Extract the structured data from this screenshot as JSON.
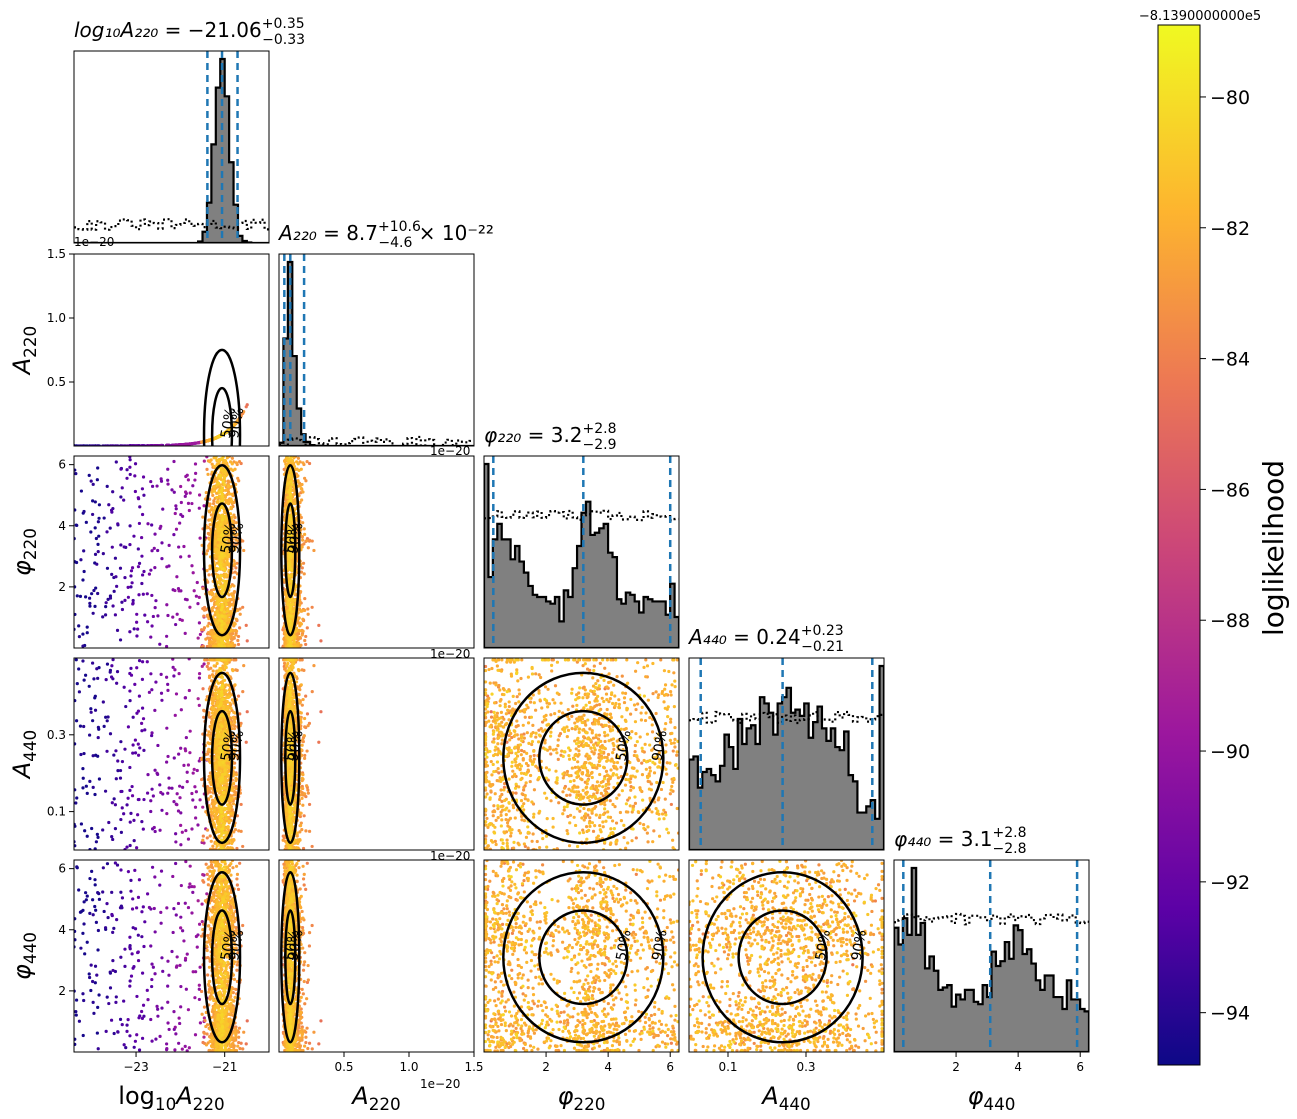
{
  "chart_data": {
    "type": "corner",
    "parameters": [
      {
        "key": "logA220",
        "base": "log",
        "sub": "10",
        "sym": "A",
        "symsub": "220",
        "range": [
          -24.4,
          -20.0
        ],
        "ticks": [
          -23,
          -21
        ],
        "tick_labels": [
          "−23",
          "−21"
        ],
        "offset": ""
      },
      {
        "key": "A220",
        "base": "",
        "sub": "",
        "sym": "A",
        "symsub": "220",
        "range": [
          0.0,
          1.5
        ],
        "ticks": [
          0.5,
          1.0,
          1.5
        ],
        "tick_labels": [
          "0.5",
          "1.0",
          "1.5"
        ],
        "offset": "1e−20"
      },
      {
        "key": "phi220",
        "base": "",
        "sub": "",
        "sym": "φ",
        "symsub": "220",
        "range": [
          0.0,
          6.283
        ],
        "ticks": [
          2,
          4,
          6
        ],
        "tick_labels": [
          "2",
          "4",
          "6"
        ],
        "offset": ""
      },
      {
        "key": "A440",
        "base": "",
        "sub": "",
        "sym": "A",
        "symsub": "440",
        "range": [
          0.0,
          0.5
        ],
        "ticks": [
          0.1,
          0.3
        ],
        "tick_labels": [
          "0.1",
          "0.3"
        ],
        "offset": ""
      },
      {
        "key": "phi440",
        "base": "",
        "sub": "",
        "sym": "φ",
        "symsub": "440",
        "range": [
          0.0,
          6.283
        ],
        "ticks": [
          2,
          4,
          6
        ],
        "tick_labels": [
          "2",
          "4",
          "6"
        ],
        "offset": ""
      }
    ],
    "diagonal_titles": [
      {
        "lhs": "log₁₀A₂₂₀",
        "eq": " = −21.06",
        "sup": "+0.35",
        "subv": "−0.33",
        "tail": ""
      },
      {
        "lhs": "A₂₂₀",
        "eq": " = 8.7",
        "sup": "+10.6",
        "subv": "−4.6",
        "tail": " × 10⁻²²"
      },
      {
        "lhs": "φ₂₂₀",
        "eq": " = 3.2",
        "sup": "+2.8",
        "subv": "−2.9",
        "tail": ""
      },
      {
        "lhs": "A₄₄₀",
        "eq": " = 0.24",
        "sup": "+0.23",
        "subv": "−0.21",
        "tail": ""
      },
      {
        "lhs": "φ₄₄₀",
        "eq": " = 3.1",
        "sup": "+2.8",
        "subv": "−2.8",
        "tail": ""
      }
    ],
    "marginals": {
      "logA220": {
        "median": -21.06,
        "lo": -21.39,
        "hi": -20.71
      },
      "A220": {
        "median": 0.087,
        "lo": 0.041,
        "hi": 0.193
      },
      "phi220": {
        "median": 3.2,
        "lo": 0.3,
        "hi": 6.0
      },
      "A440": {
        "median": 0.24,
        "lo": 0.03,
        "hi": 0.47
      },
      "phi440": {
        "median": 3.1,
        "lo": 0.3,
        "hi": 5.9
      }
    },
    "contour_levels": [
      "50%",
      "90%"
    ],
    "colorbar": {
      "label": "loglikelihood",
      "offset_text": "−8.1390000000e5",
      "range": [
        -94.8,
        -78.9
      ],
      "ticks": [
        -80,
        -82,
        -84,
        -86,
        -88,
        -90,
        -92,
        -94
      ],
      "tick_labels": [
        "−80",
        "−82",
        "−84",
        "−86",
        "−88",
        "−90",
        "−92",
        "−94"
      ],
      "colormap": [
        "#0d0887",
        "#5c01a6",
        "#9c179e",
        "#cc4778",
        "#ed7953",
        "#fdb42f",
        "#f0f921"
      ]
    },
    "colors": {
      "hist_fill": "#808080",
      "quantile_line": "#1f77b4",
      "contour": "#000000"
    }
  }
}
